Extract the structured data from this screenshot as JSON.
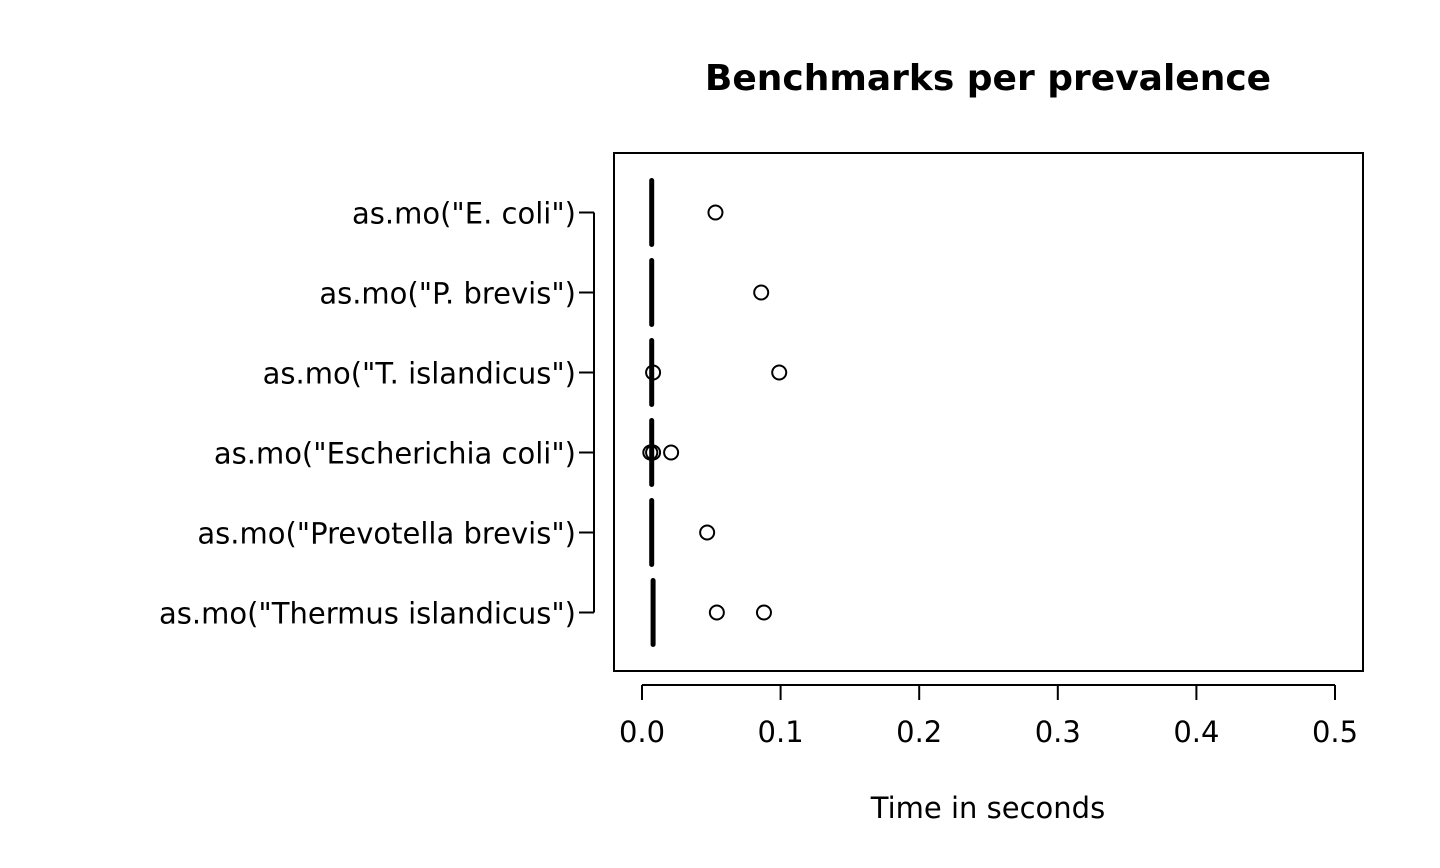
{
  "chart_data": {
    "type": "boxplot",
    "orientation": "horizontal",
    "title": "Benchmarks per prevalence",
    "xlabel": "Time in seconds",
    "ylabel": "",
    "xlim": [
      0,
      0.5
    ],
    "x_ticks": [
      "0.0",
      "0.1",
      "0.2",
      "0.3",
      "0.4",
      "0.5"
    ],
    "grid": false,
    "categories": [
      "as.mo(\"E. coli\")",
      "as.mo(\"P. brevis\")",
      "as.mo(\"T. islandicus\")",
      "as.mo(\"Escherichia coli\")",
      "as.mo(\"Prevotella brevis\")",
      "as.mo(\"Thermus islandicus\")"
    ],
    "boxes": [
      {
        "median": 0.007,
        "q1": 0.007,
        "q3": 0.007,
        "whisker_low": 0.007,
        "whisker_high": 0.007,
        "outliers": [
          0.053
        ]
      },
      {
        "median": 0.007,
        "q1": 0.007,
        "q3": 0.007,
        "whisker_low": 0.007,
        "whisker_high": 0.007,
        "outliers": [
          0.086
        ]
      },
      {
        "median": 0.007,
        "q1": 0.007,
        "q3": 0.007,
        "whisker_low": 0.007,
        "whisker_high": 0.007,
        "outliers": [
          0.008,
          0.099
        ]
      },
      {
        "median": 0.007,
        "q1": 0.007,
        "q3": 0.007,
        "whisker_low": 0.007,
        "whisker_high": 0.007,
        "outliers": [
          0.006,
          0.008,
          0.021
        ]
      },
      {
        "median": 0.007,
        "q1": 0.007,
        "q3": 0.007,
        "whisker_low": 0.007,
        "whisker_high": 0.007,
        "outliers": [
          0.047
        ]
      },
      {
        "median": 0.008,
        "q1": 0.008,
        "q3": 0.008,
        "whisker_low": 0.008,
        "whisker_high": 0.008,
        "outliers": [
          0.054,
          0.088
        ]
      }
    ]
  }
}
